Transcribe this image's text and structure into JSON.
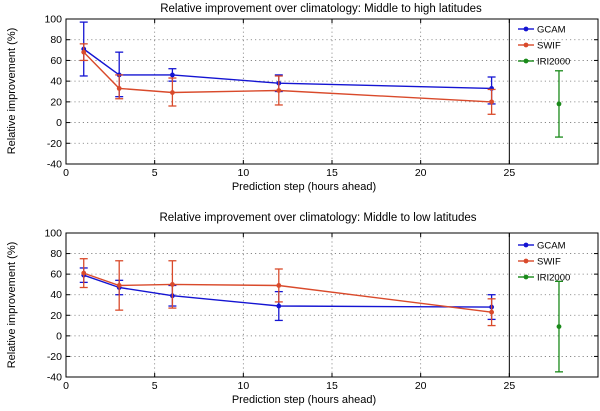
{
  "chart_data": [
    {
      "type": "line",
      "title": "Relative improvement over climatology: Middle to high latitudes",
      "xlabel": "Prediction step (hours ahead)",
      "ylabel": "Relative improvement (%)",
      "xlim": [
        0,
        30
      ],
      "ylim": [
        -40,
        100
      ],
      "xticks": [
        0,
        5,
        10,
        15,
        20,
        25
      ],
      "yticks": [
        -40,
        -20,
        0,
        20,
        40,
        60,
        80,
        100
      ],
      "grid": true,
      "legend_position": "top-right",
      "separator_x": 25,
      "series": [
        {
          "name": "GCAM",
          "color": "#1414d2",
          "x": [
            1,
            3,
            6,
            12,
            24
          ],
          "y": [
            71,
            46,
            46,
            38,
            33
          ],
          "err_low": [
            45,
            25,
            40,
            30,
            18
          ],
          "err_high": [
            97,
            68,
            52,
            46,
            44
          ],
          "line": true
        },
        {
          "name": "SWIF",
          "color": "#d94a2b",
          "x": [
            1,
            3,
            6,
            12,
            24
          ],
          "y": [
            68,
            33,
            29,
            31,
            20
          ],
          "err_low": [
            60,
            23,
            16,
            17,
            8
          ],
          "err_high": [
            76,
            46,
            43,
            45,
            32
          ],
          "line": true
        },
        {
          "name": "IRI2000",
          "color": "#1a8a1a",
          "x": [
            27.8
          ],
          "y": [
            18
          ],
          "err_low": [
            -14
          ],
          "err_high": [
            50
          ],
          "line": false
        }
      ]
    },
    {
      "type": "line",
      "title": "Relative improvement over climatology: Middle to low latitudes",
      "xlabel": "Prediction step (hours ahead)",
      "ylabel": "Relative improvement (%)",
      "xlim": [
        0,
        30
      ],
      "ylim": [
        -40,
        100
      ],
      "xticks": [
        0,
        5,
        10,
        15,
        20,
        25
      ],
      "yticks": [
        -40,
        -20,
        0,
        20,
        40,
        60,
        80,
        100
      ],
      "grid": true,
      "legend_position": "top-right",
      "separator_x": 25,
      "series": [
        {
          "name": "GCAM",
          "color": "#1414d2",
          "x": [
            1,
            3,
            6,
            12,
            24
          ],
          "y": [
            59,
            47,
            39,
            29,
            28
          ],
          "err_low": [
            52,
            40,
            29,
            15,
            16
          ],
          "err_high": [
            66,
            54,
            49,
            43,
            40
          ],
          "line": true
        },
        {
          "name": "SWIF",
          "color": "#d94a2b",
          "x": [
            1,
            3,
            6,
            12,
            24
          ],
          "y": [
            61,
            49,
            50,
            49,
            23
          ],
          "err_low": [
            47,
            25,
            27,
            33,
            10
          ],
          "err_high": [
            75,
            73,
            73,
            65,
            36
          ],
          "line": true
        },
        {
          "name": "IRI2000",
          "color": "#1a8a1a",
          "x": [
            27.8
          ],
          "y": [
            9
          ],
          "err_low": [
            -35
          ],
          "err_high": [
            53
          ],
          "line": false
        }
      ]
    }
  ]
}
